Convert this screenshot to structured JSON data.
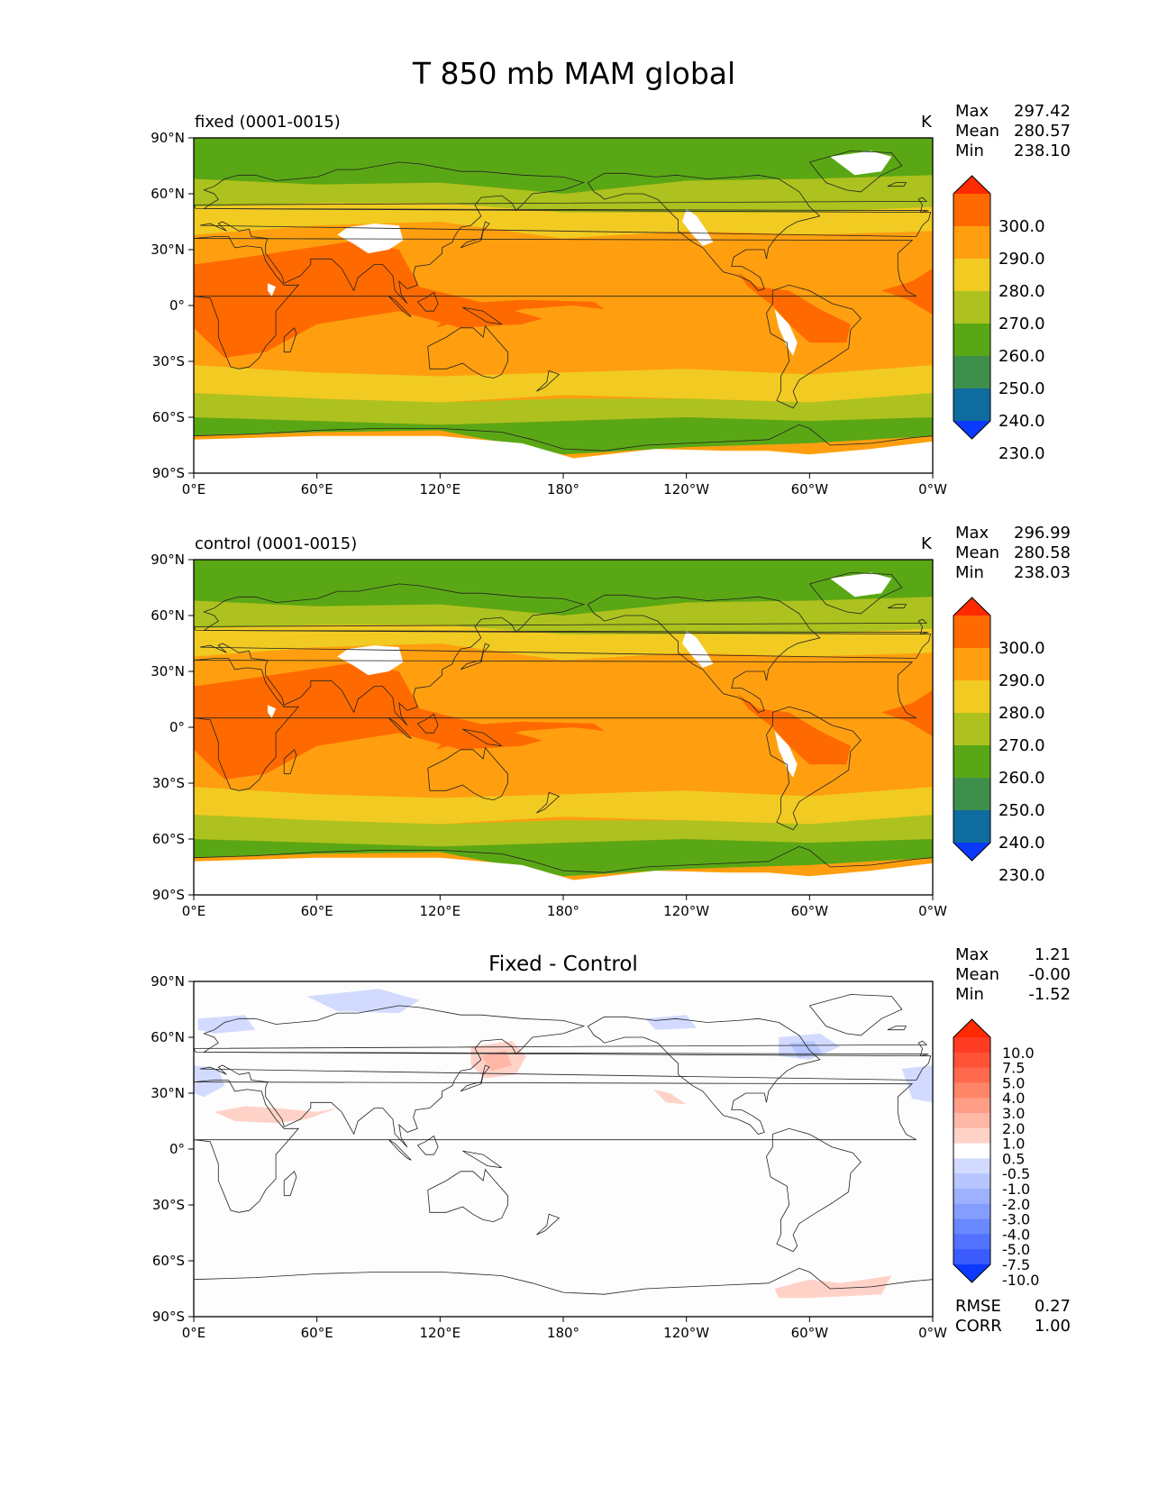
{
  "title": "T 850 mb MAM global",
  "x_ticks": [
    "0°E",
    "60°E",
    "120°E",
    "180°",
    "120°W",
    "60°W",
    "0°W"
  ],
  "y_ticks": [
    "90°N",
    "60°N",
    "30°N",
    "0°",
    "30°S",
    "60°S",
    "90°S"
  ],
  "panels": [
    {
      "id": "fixed",
      "left_label": "fixed (0001-0015)",
      "center_title": "",
      "units": "K",
      "stats": [
        [
          "Max",
          "297.42"
        ],
        [
          "Mean",
          "280.57"
        ],
        [
          "Min",
          "238.10"
        ]
      ],
      "colorbar": {
        "labels": [
          "300.0",
          "290.0",
          "280.0",
          "270.0",
          "260.0",
          "250.0",
          "240.0",
          "230.0"
        ],
        "colors": [
          "#ff2a00",
          "#ff6a00",
          "#ff9f0f",
          "#f1cb22",
          "#adc21e",
          "#5aa715",
          "#3f8f4c",
          "#0f6c9e",
          "#0a3aff"
        ]
      }
    },
    {
      "id": "control",
      "left_label": "control (0001-0015)",
      "center_title": "",
      "units": "K",
      "stats": [
        [
          "Max",
          "296.99"
        ],
        [
          "Mean",
          "280.58"
        ],
        [
          "Min",
          "238.03"
        ]
      ],
      "colorbar": {
        "labels": [
          "300.0",
          "290.0",
          "280.0",
          "270.0",
          "260.0",
          "250.0",
          "240.0",
          "230.0"
        ],
        "colors": [
          "#ff2a00",
          "#ff6a00",
          "#ff9f0f",
          "#f1cb22",
          "#adc21e",
          "#5aa715",
          "#3f8f4c",
          "#0f6c9e",
          "#0a3aff"
        ]
      }
    },
    {
      "id": "diff",
      "left_label": "",
      "center_title": "Fixed - Control",
      "units": "",
      "stats": [
        [
          "Max",
          "1.21"
        ],
        [
          "Mean",
          "-0.00"
        ],
        [
          "Min",
          "-1.52"
        ]
      ],
      "bottom_stats": [
        [
          "RMSE",
          "0.27"
        ],
        [
          "CORR",
          "1.00"
        ]
      ],
      "colorbar": {
        "labels": [
          "10.0",
          "7.5",
          "5.0",
          "4.0",
          "3.0",
          "2.0",
          "1.0",
          "0.5",
          "-0.5",
          "-1.0",
          "-2.0",
          "-3.0",
          "-4.0",
          "-5.0",
          "-7.5",
          "-10.0"
        ],
        "colors": [
          "#ff2a00",
          "#ff3b23",
          "#ff5237",
          "#ff6a4f",
          "#ff8569",
          "#ff9d87",
          "#ffb7a6",
          "#ffd2c8",
          "#ffffff",
          "#d2dbff",
          "#b7c6ff",
          "#9db1ff",
          "#859dff",
          "#6a88ff",
          "#5272ff",
          "#3b5bff",
          "#0a3aff"
        ]
      }
    }
  ]
}
